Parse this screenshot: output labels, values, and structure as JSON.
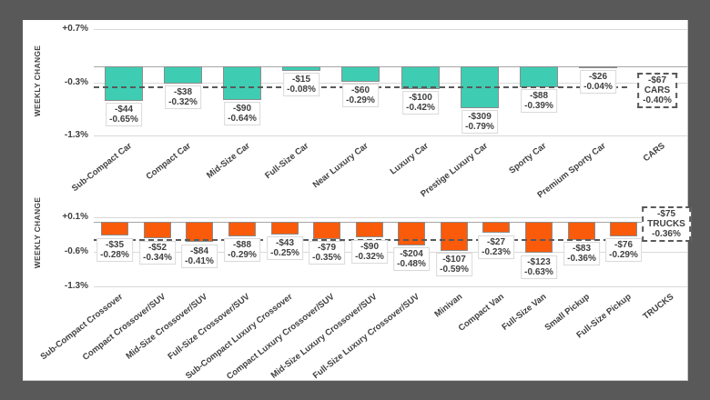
{
  "window": {
    "background_color": "#595959",
    "panel_background_color": "#ffffff"
  },
  "chart_data": [
    {
      "type": "bar",
      "id": "cars",
      "ylabel": "WEEKLY CHANGE",
      "bar_color": "#3ECDB3",
      "ylim": [
        0.7,
        -1.3
      ],
      "grid": true,
      "legend_position": "none",
      "yticks": [
        {
          "label": "+0.7%",
          "value": 0.7
        },
        {
          "label": "-0.3%",
          "value": -0.3
        },
        {
          "label": "-1.3%",
          "value": -1.3
        }
      ],
      "average_line": {
        "value": -0.4,
        "style": "dashed"
      },
      "summary": {
        "dollar_label": "-$67",
        "group_label": "CARS",
        "pct_label": "-0.40%",
        "pct": -0.4
      },
      "points": [
        {
          "category": "Sub-Compact Car",
          "dollar_label": "-$44",
          "pct_label": "-0.65%",
          "pct": -0.65
        },
        {
          "category": "Compact Car",
          "dollar_label": "-$38",
          "pct_label": "-0.32%",
          "pct": -0.32
        },
        {
          "category": "Mid-Size Car",
          "dollar_label": "-$90",
          "pct_label": "-0.64%",
          "pct": -0.64
        },
        {
          "category": "Full-Size Car",
          "dollar_label": "-$15",
          "pct_label": "-0.08%",
          "pct": -0.08
        },
        {
          "category": "Near Luxury Car",
          "dollar_label": "-$60",
          "pct_label": "-0.29%",
          "pct": -0.29
        },
        {
          "category": "Luxury Car",
          "dollar_label": "-$100",
          "pct_label": "-0.42%",
          "pct": -0.42
        },
        {
          "category": "Prestige Luxury Car",
          "dollar_label": "-$309",
          "pct_label": "-0.79%",
          "pct": -0.79
        },
        {
          "category": "Sporty Car",
          "dollar_label": "-$88",
          "pct_label": "-0.39%",
          "pct": -0.39
        },
        {
          "category": "Premium Sporty Car",
          "dollar_label": "-$26",
          "pct_label": "-0.04%",
          "pct": -0.04
        }
      ]
    },
    {
      "type": "bar",
      "id": "trucks",
      "ylabel": "WEEKLY CHANGE",
      "bar_color": "#F95B0A",
      "ylim": [
        0.1,
        -1.3
      ],
      "grid": true,
      "legend_position": "none",
      "yticks": [
        {
          "label": "+0.1%",
          "value": 0.1
        },
        {
          "label": "-0.6%",
          "value": -0.6
        },
        {
          "label": "-1.3%",
          "value": -1.3
        }
      ],
      "average_line": {
        "value": -0.36,
        "style": "dashed"
      },
      "summary": {
        "dollar_label": "-$75",
        "group_label": "TRUCKS",
        "pct_label": "-0.36%",
        "pct": -0.36
      },
      "points": [
        {
          "category": "Sub-Compact Crossover",
          "dollar_label": "-$35",
          "pct_label": "-0.28%",
          "pct": -0.28
        },
        {
          "category": "Compact Crossover/SUV",
          "dollar_label": "-$52",
          "pct_label": "-0.34%",
          "pct": -0.34
        },
        {
          "category": "Mid-Size Crossover/SUV",
          "dollar_label": "-$84",
          "pct_label": "-0.41%",
          "pct": -0.41
        },
        {
          "category": "Full-Size Crossover/SUV",
          "dollar_label": "-$88",
          "pct_label": "-0.29%",
          "pct": -0.29
        },
        {
          "category": "Sub-Compact Luxury Crossover",
          "dollar_label": "-$43",
          "pct_label": "-0.25%",
          "pct": -0.25
        },
        {
          "category": "Compact Luxury Crossover/SUV",
          "dollar_label": "-$79",
          "pct_label": "-0.35%",
          "pct": -0.35
        },
        {
          "category": "Mid-Size Luxury Crossover/SUV",
          "dollar_label": "-$90",
          "pct_label": "-0.32%",
          "pct": -0.32
        },
        {
          "category": "Full-Size Luxury Crossover/SUV",
          "dollar_label": "-$204",
          "pct_label": "-0.48%",
          "pct": -0.48
        },
        {
          "category": "Minivan",
          "dollar_label": "-$107",
          "pct_label": "-0.59%",
          "pct": -0.59
        },
        {
          "category": "Compact Van",
          "dollar_label": "-$27",
          "pct_label": "-0.23%",
          "pct": -0.23
        },
        {
          "category": "Full-Size Van",
          "dollar_label": "-$123",
          "pct_label": "-0.63%",
          "pct": -0.63
        },
        {
          "category": "Small Pickup",
          "dollar_label": "-$83",
          "pct_label": "-0.36%",
          "pct": -0.36
        },
        {
          "category": "Full-Size Pickup",
          "dollar_label": "-$76",
          "pct_label": "-0.29%",
          "pct": -0.29
        }
      ]
    }
  ]
}
